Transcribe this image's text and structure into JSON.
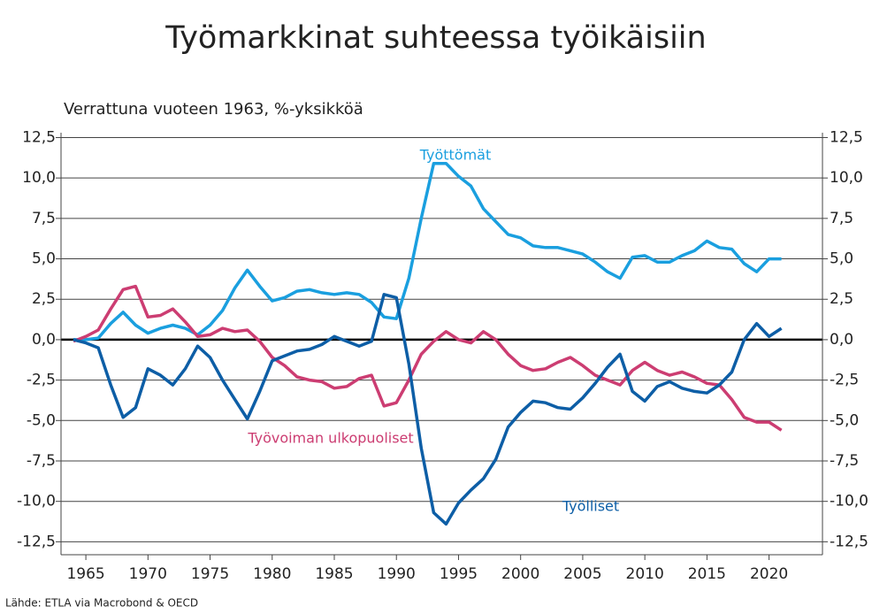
{
  "chart_data": {
    "type": "line",
    "title": "Työmarkkinat suhteessa työikäisiin",
    "subtitle": "Verrattuna vuoteen 1963, %-yksikköä",
    "source": "Lähde: ETLA via Macrobond & OECD",
    "x": [
      1964,
      1965,
      1966,
      1967,
      1968,
      1969,
      1970,
      1971,
      1972,
      1973,
      1974,
      1975,
      1976,
      1977,
      1978,
      1979,
      1980,
      1981,
      1982,
      1983,
      1984,
      1985,
      1986,
      1987,
      1988,
      1989,
      1990,
      1991,
      1992,
      1993,
      1994,
      1995,
      1996,
      1997,
      1998,
      1999,
      2000,
      2001,
      2002,
      2003,
      2004,
      2005,
      2006,
      2007,
      2008,
      2009,
      2010,
      2011,
      2012,
      2013,
      2014,
      2015,
      2016,
      2017,
      2018,
      2019,
      2020,
      2021
    ],
    "xlim": [
      1963,
      2024.3
    ],
    "xticks": [
      1965,
      1970,
      1975,
      1980,
      1985,
      1990,
      1995,
      2000,
      2005,
      2010,
      2015,
      2020
    ],
    "ylim": [
      -13.3,
      12.8
    ],
    "yticks": [
      {
        "value": -12.5,
        "label": "-12,5"
      },
      {
        "value": -10,
        "label": "-10,0"
      },
      {
        "value": -7.5,
        "label": "-7,5"
      },
      {
        "value": -5,
        "label": "-5,0"
      },
      {
        "value": -2.5,
        "label": "-2,5"
      },
      {
        "value": 0,
        "label": "0,0"
      },
      {
        "value": 2.5,
        "label": "2,5"
      },
      {
        "value": 5,
        "label": "5,0"
      },
      {
        "value": 7.5,
        "label": "7,5"
      },
      {
        "value": 10,
        "label": "10,0"
      },
      {
        "value": 12.5,
        "label": "12,5"
      }
    ],
    "y2lim": [
      -13.3,
      12.8
    ],
    "y2ticks": [
      {
        "value": -12.5,
        "label": "-12,5"
      },
      {
        "value": -10,
        "label": "-10,0"
      },
      {
        "value": -7.5,
        "label": "-7,5"
      },
      {
        "value": -5,
        "label": "-5,0"
      },
      {
        "value": -2.5,
        "label": "-2,5"
      },
      {
        "value": 0,
        "label": "0,0"
      },
      {
        "value": 2.5,
        "label": "2,5"
      },
      {
        "value": 5,
        "label": "5,0"
      },
      {
        "value": 7.5,
        "label": "7,5"
      },
      {
        "value": 10,
        "label": "10,0"
      },
      {
        "value": 12.5,
        "label": "12,5"
      }
    ],
    "series": [
      {
        "name": "Työttömät",
        "color": "#1a9fdf",
        "values": [
          0,
          0,
          0.1,
          1.0,
          1.7,
          0.9,
          0.4,
          0.7,
          0.9,
          0.7,
          0.3,
          0.9,
          1.8,
          3.2,
          4.3,
          3.3,
          2.4,
          2.6,
          3.0,
          3.1,
          2.9,
          2.8,
          2.9,
          2.8,
          2.3,
          1.4,
          1.3,
          3.8,
          7.5,
          10.9,
          10.9,
          10.1,
          9.5,
          8.1,
          7.3,
          6.5,
          6.3,
          5.8,
          5.7,
          5.7,
          5.5,
          5.3,
          4.8,
          4.2,
          3.8,
          5.1,
          5.2,
          4.8,
          4.8,
          5.2,
          5.5,
          6.1,
          5.7,
          5.6,
          4.7,
          4.2,
          5.0,
          5.0
        ]
      },
      {
        "name": "Työvoiman ulkopuoliset",
        "color": "#cc3d72",
        "values": [
          -0.1,
          0.2,
          0.6,
          1.9,
          3.1,
          3.3,
          1.4,
          1.5,
          1.9,
          1.1,
          0.2,
          0.3,
          0.7,
          0.5,
          0.6,
          -0.1,
          -1.1,
          -1.6,
          -2.3,
          -2.5,
          -2.6,
          -3.0,
          -2.9,
          -2.4,
          -2.2,
          -4.1,
          -3.9,
          -2.5,
          -0.9,
          -0.1,
          0.5,
          0.0,
          -0.2,
          0.5,
          0.0,
          -0.9,
          -1.6,
          -1.9,
          -1.8,
          -1.4,
          -1.1,
          -1.6,
          -2.2,
          -2.5,
          -2.8,
          -1.9,
          -1.4,
          -1.9,
          -2.2,
          -2.0,
          -2.3,
          -2.7,
          -2.8,
          -3.7,
          -4.8,
          -5.1,
          -5.1,
          -5.6
        ]
      },
      {
        "name": "Työlliset",
        "color": "#0d5ea6",
        "values": [
          0,
          -0.2,
          -0.5,
          -2.8,
          -4.8,
          -4.2,
          -1.8,
          -2.2,
          -2.8,
          -1.8,
          -0.4,
          -1.1,
          -2.5,
          -3.7,
          -4.9,
          -3.2,
          -1.3,
          -1.0,
          -0.7,
          -0.6,
          -0.3,
          0.2,
          -0.1,
          -0.4,
          -0.1,
          2.8,
          2.6,
          -1.5,
          -6.7,
          -10.7,
          -11.4,
          -10.1,
          -9.3,
          -8.6,
          -7.4,
          -5.4,
          -4.5,
          -3.8,
          -3.9,
          -4.2,
          -4.3,
          -3.6,
          -2.7,
          -1.7,
          -0.9,
          -3.2,
          -3.8,
          -2.9,
          -2.6,
          -3.0,
          -3.2,
          -3.3,
          -2.8,
          -2.0,
          0.0,
          1.0,
          0.2,
          0.7
        ]
      }
    ]
  }
}
